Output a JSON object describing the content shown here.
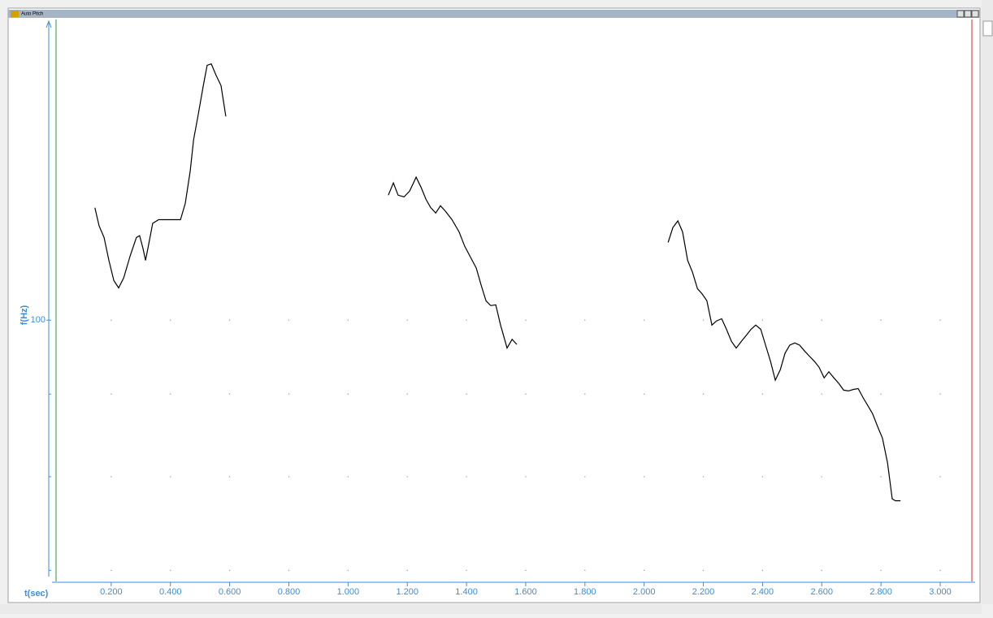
{
  "chart_data": {
    "type": "line",
    "title": "Auto Pitch",
    "x_label": "t(sec)",
    "y_label": "f(Hz)",
    "log_scale_y": true,
    "grid": "dots",
    "xlim": [
      0,
      3.107
    ],
    "ylim": [
      68.9,
      152.8
    ],
    "xticks": [
      {
        "value": 0.2,
        "label": "0.200"
      },
      {
        "value": 0.4,
        "label": "0.400"
      },
      {
        "value": 0.6,
        "label": "0.600"
      },
      {
        "value": 0.8,
        "label": "0.800"
      },
      {
        "value": 1.0,
        "label": "1.000"
      },
      {
        "value": 1.2,
        "label": "1.200"
      },
      {
        "value": 1.4,
        "label": "1.400"
      },
      {
        "value": 1.6,
        "label": "1.600"
      },
      {
        "value": 1.8,
        "label": "1.800"
      },
      {
        "value": 2.0,
        "label": "2.000"
      },
      {
        "value": 2.2,
        "label": "2.200"
      },
      {
        "value": 2.4,
        "label": "2.400"
      },
      {
        "value": 2.6,
        "label": "2.600"
      },
      {
        "value": 2.8,
        "label": "2.800"
      },
      {
        "value": 3.0,
        "label": "3.000"
      }
    ],
    "yticks": [
      100
    ],
    "minor_yticks": [
      90,
      80,
      70
    ],
    "x": [
      0.145,
      0.159,
      0.176,
      0.192,
      0.209,
      0.225,
      0.242,
      0.264,
      0.285,
      0.296,
      0.307,
      0.316,
      0.327,
      0.34,
      0.36,
      0.401,
      0.434,
      0.45,
      0.467,
      0.478,
      0.494,
      0.511,
      0.524,
      0.538,
      0.554,
      0.571,
      0.587,
      0.85,
      1.136,
      1.153,
      1.169,
      1.189,
      1.208,
      1.23,
      1.246,
      1.263,
      1.279,
      1.296,
      1.312,
      1.329,
      1.351,
      1.375,
      1.394,
      1.411,
      1.433,
      1.449,
      1.466,
      1.482,
      1.499,
      1.515,
      1.537,
      1.554,
      1.57,
      1.85,
      2.081,
      2.097,
      2.114,
      2.13,
      2.147,
      2.163,
      2.18,
      2.196,
      2.212,
      2.229,
      2.245,
      2.262,
      2.278,
      2.295,
      2.311,
      2.328,
      2.344,
      2.361,
      2.377,
      2.394,
      2.41,
      2.427,
      2.443,
      2.46,
      2.476,
      2.492,
      2.509,
      2.525,
      2.542,
      2.558,
      2.575,
      2.591,
      2.608,
      2.624,
      2.641,
      2.657,
      2.674,
      2.69,
      2.707,
      2.723,
      2.74,
      2.756,
      2.772,
      2.789,
      2.805,
      2.822,
      2.838,
      2.849,
      2.866
    ],
    "series": [
      {
        "color": "#000000",
        "values": [
          117.4,
          114.4,
          112.5,
          108.9,
          105.8,
          104.7,
          106.2,
          109.6,
          112.5,
          112.8,
          110.8,
          108.9,
          111.5,
          114.8,
          115.4,
          115.4,
          115.4,
          118.1,
          123.7,
          129.3,
          134.1,
          139.7,
          143.8,
          144.1,
          141.8,
          139.7,
          133.7,
          null,
          119.5,
          121.6,
          119.5,
          119.2,
          120.2,
          122.6,
          120.9,
          118.8,
          117.4,
          116.5,
          117.7,
          116.8,
          115.4,
          113.4,
          111.1,
          109.6,
          107.7,
          105.2,
          102.8,
          102.1,
          102.2,
          99.3,
          96.1,
          97.3,
          96.6,
          null,
          111.7,
          114.1,
          115.2,
          113.4,
          108.9,
          107.1,
          104.6,
          103.8,
          102.8,
          99.3,
          99.9,
          100.2,
          98.7,
          97.0,
          96.1,
          97.0,
          97.8,
          98.7,
          99.3,
          98.7,
          96.5,
          94.3,
          91.8,
          93.2,
          95.4,
          96.5,
          96.8,
          96.5,
          95.7,
          95.0,
          94.3,
          93.5,
          92.1,
          92.9,
          92.1,
          91.4,
          90.5,
          90.4,
          90.6,
          90.7,
          89.5,
          88.5,
          87.5,
          85.9,
          84.5,
          81.6,
          77.5,
          77.3,
          77.3
        ]
      }
    ]
  }
}
